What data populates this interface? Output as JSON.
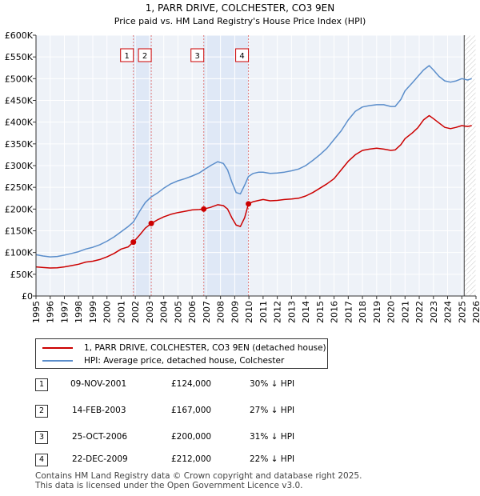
{
  "title_line1": "1, PARR DRIVE, COLCHESTER, CO3 9EN",
  "title_line2": "Price paid vs. HM Land Registry's House Price Index (HPI)",
  "chart_data": {
    "type": "line",
    "y_tick_labels": [
      "£0",
      "£50K",
      "£100K",
      "£150K",
      "£200K",
      "£250K",
      "£300K",
      "£350K",
      "£400K",
      "£450K",
      "£500K",
      "£550K",
      "£600K"
    ],
    "x_tick_labels": [
      "1995",
      "1996",
      "1997",
      "1998",
      "1999",
      "2000",
      "2001",
      "2002",
      "2003",
      "2004",
      "2005",
      "2006",
      "2007",
      "2008",
      "2009",
      "2010",
      "2011",
      "2012",
      "2013",
      "2014",
      "2015",
      "2016",
      "2017",
      "2018",
      "2019",
      "2020",
      "2021",
      "2022",
      "2023",
      "2024",
      "2025",
      "2026"
    ],
    "xlim": [
      1995,
      2026
    ],
    "ylim": [
      0,
      600000
    ],
    "forecast_start": 2025.17,
    "shaded_ranges": [
      [
        2001.86,
        2003.12
      ],
      [
        2006.82,
        2009.97
      ]
    ],
    "series": [
      {
        "name": "1, PARR DRIVE, COLCHESTER, CO3 9EN (detached house)",
        "color": "#cc0000",
        "points": [
          [
            1995.0,
            67000
          ],
          [
            1995.5,
            65500
          ],
          [
            1996.0,
            64500
          ],
          [
            1996.5,
            65000
          ],
          [
            1997.0,
            67000
          ],
          [
            1997.5,
            70000
          ],
          [
            1998.0,
            73000
          ],
          [
            1998.5,
            78000
          ],
          [
            1999.0,
            80000
          ],
          [
            1999.5,
            84000
          ],
          [
            2000.0,
            90000
          ],
          [
            2000.5,
            98000
          ],
          [
            2001.0,
            108000
          ],
          [
            2001.5,
            113000
          ],
          [
            2001.86,
            124000
          ],
          [
            2002.3,
            140000
          ],
          [
            2002.7,
            156000
          ],
          [
            2003.12,
            167000
          ],
          [
            2003.6,
            176000
          ],
          [
            2004.0,
            182000
          ],
          [
            2004.5,
            188000
          ],
          [
            2005.0,
            192000
          ],
          [
            2005.5,
            195000
          ],
          [
            2006.0,
            198000
          ],
          [
            2006.5,
            199000
          ],
          [
            2006.82,
            200000
          ],
          [
            2007.3,
            204000
          ],
          [
            2007.8,
            210000
          ],
          [
            2008.2,
            208000
          ],
          [
            2008.5,
            200000
          ],
          [
            2008.8,
            180000
          ],
          [
            2009.1,
            163000
          ],
          [
            2009.4,
            160000
          ],
          [
            2009.7,
            180000
          ],
          [
            2009.97,
            212000
          ],
          [
            2010.3,
            217000
          ],
          [
            2010.7,
            220000
          ],
          [
            2011.0,
            222000
          ],
          [
            2011.5,
            219000
          ],
          [
            2012.0,
            220000
          ],
          [
            2012.5,
            222000
          ],
          [
            2013.0,
            223000
          ],
          [
            2013.5,
            225000
          ],
          [
            2014.0,
            230000
          ],
          [
            2014.5,
            238000
          ],
          [
            2015.0,
            248000
          ],
          [
            2015.5,
            258000
          ],
          [
            2016.0,
            270000
          ],
          [
            2016.5,
            290000
          ],
          [
            2017.0,
            310000
          ],
          [
            2017.5,
            325000
          ],
          [
            2018.0,
            335000
          ],
          [
            2018.5,
            338000
          ],
          [
            2019.0,
            340000
          ],
          [
            2019.5,
            338000
          ],
          [
            2020.0,
            335000
          ],
          [
            2020.3,
            336000
          ],
          [
            2020.7,
            348000
          ],
          [
            2021.0,
            362000
          ],
          [
            2021.5,
            375000
          ],
          [
            2021.9,
            387000
          ],
          [
            2022.3,
            405000
          ],
          [
            2022.7,
            415000
          ],
          [
            2023.0,
            408000
          ],
          [
            2023.4,
            398000
          ],
          [
            2023.8,
            388000
          ],
          [
            2024.2,
            385000
          ],
          [
            2024.6,
            388000
          ],
          [
            2025.0,
            392000
          ],
          [
            2025.4,
            390000
          ],
          [
            2025.7,
            392000
          ]
        ]
      },
      {
        "name": "HPI: Average price, detached house, Colchester",
        "color": "#5b8ecb",
        "points": [
          [
            1995.0,
            95000
          ],
          [
            1995.5,
            92000
          ],
          [
            1996.0,
            90000
          ],
          [
            1996.5,
            91000
          ],
          [
            1997.0,
            94000
          ],
          [
            1997.5,
            98000
          ],
          [
            1998.0,
            102000
          ],
          [
            1998.5,
            108000
          ],
          [
            1999.0,
            112000
          ],
          [
            1999.5,
            118000
          ],
          [
            2000.0,
            126000
          ],
          [
            2000.5,
            136000
          ],
          [
            2001.0,
            148000
          ],
          [
            2001.5,
            160000
          ],
          [
            2001.86,
            170000
          ],
          [
            2002.3,
            195000
          ],
          [
            2002.7,
            215000
          ],
          [
            2003.12,
            228000
          ],
          [
            2003.6,
            238000
          ],
          [
            2004.0,
            248000
          ],
          [
            2004.5,
            258000
          ],
          [
            2005.0,
            265000
          ],
          [
            2005.5,
            270000
          ],
          [
            2006.0,
            276000
          ],
          [
            2006.5,
            283000
          ],
          [
            2006.82,
            290000
          ],
          [
            2007.3,
            300000
          ],
          [
            2007.8,
            309000
          ],
          [
            2008.2,
            305000
          ],
          [
            2008.5,
            290000
          ],
          [
            2008.8,
            262000
          ],
          [
            2009.1,
            238000
          ],
          [
            2009.4,
            235000
          ],
          [
            2009.7,
            255000
          ],
          [
            2009.97,
            275000
          ],
          [
            2010.3,
            282000
          ],
          [
            2010.7,
            285000
          ],
          [
            2011.0,
            285000
          ],
          [
            2011.5,
            282000
          ],
          [
            2012.0,
            283000
          ],
          [
            2012.5,
            285000
          ],
          [
            2013.0,
            288000
          ],
          [
            2013.5,
            292000
          ],
          [
            2014.0,
            300000
          ],
          [
            2014.5,
            312000
          ],
          [
            2015.0,
            325000
          ],
          [
            2015.5,
            340000
          ],
          [
            2016.0,
            360000
          ],
          [
            2016.5,
            380000
          ],
          [
            2017.0,
            405000
          ],
          [
            2017.5,
            425000
          ],
          [
            2018.0,
            435000
          ],
          [
            2018.5,
            438000
          ],
          [
            2019.0,
            440000
          ],
          [
            2019.5,
            440000
          ],
          [
            2020.0,
            436000
          ],
          [
            2020.3,
            436000
          ],
          [
            2020.7,
            452000
          ],
          [
            2021.0,
            472000
          ],
          [
            2021.5,
            490000
          ],
          [
            2021.9,
            505000
          ],
          [
            2022.3,
            520000
          ],
          [
            2022.7,
            530000
          ],
          [
            2023.0,
            520000
          ],
          [
            2023.4,
            505000
          ],
          [
            2023.8,
            495000
          ],
          [
            2024.2,
            492000
          ],
          [
            2024.6,
            495000
          ],
          [
            2025.0,
            500000
          ],
          [
            2025.4,
            497000
          ],
          [
            2025.7,
            500000
          ]
        ]
      }
    ],
    "sales": [
      {
        "label": "1",
        "x": 2001.86,
        "y": 124000
      },
      {
        "label": "2",
        "x": 2003.12,
        "y": 167000
      },
      {
        "label": "3",
        "x": 2006.82,
        "y": 200000
      },
      {
        "label": "4",
        "x": 2009.97,
        "y": 212000
      }
    ]
  },
  "legend": {
    "items": [
      {
        "label": "1, PARR DRIVE, COLCHESTER, CO3 9EN (detached house)",
        "color": "#cc0000"
      },
      {
        "label": "HPI: Average price, detached house, Colchester",
        "color": "#5b8ecb"
      }
    ]
  },
  "sales_table": [
    {
      "num": "1",
      "date": "09-NOV-2001",
      "price": "£124,000",
      "hpi": "30% ↓ HPI"
    },
    {
      "num": "2",
      "date": "14-FEB-2003",
      "price": "£167,000",
      "hpi": "27% ↓ HPI"
    },
    {
      "num": "3",
      "date": "25-OCT-2006",
      "price": "£200,000",
      "hpi": "31% ↓ HPI"
    },
    {
      "num": "4",
      "date": "22-DEC-2009",
      "price": "£212,000",
      "hpi": "22% ↓ HPI"
    }
  ],
  "footer": {
    "line1": "Contains HM Land Registry data © Crown copyright and database right 2025.",
    "line2": "This data is licensed under the Open Government Licence v3.0."
  }
}
